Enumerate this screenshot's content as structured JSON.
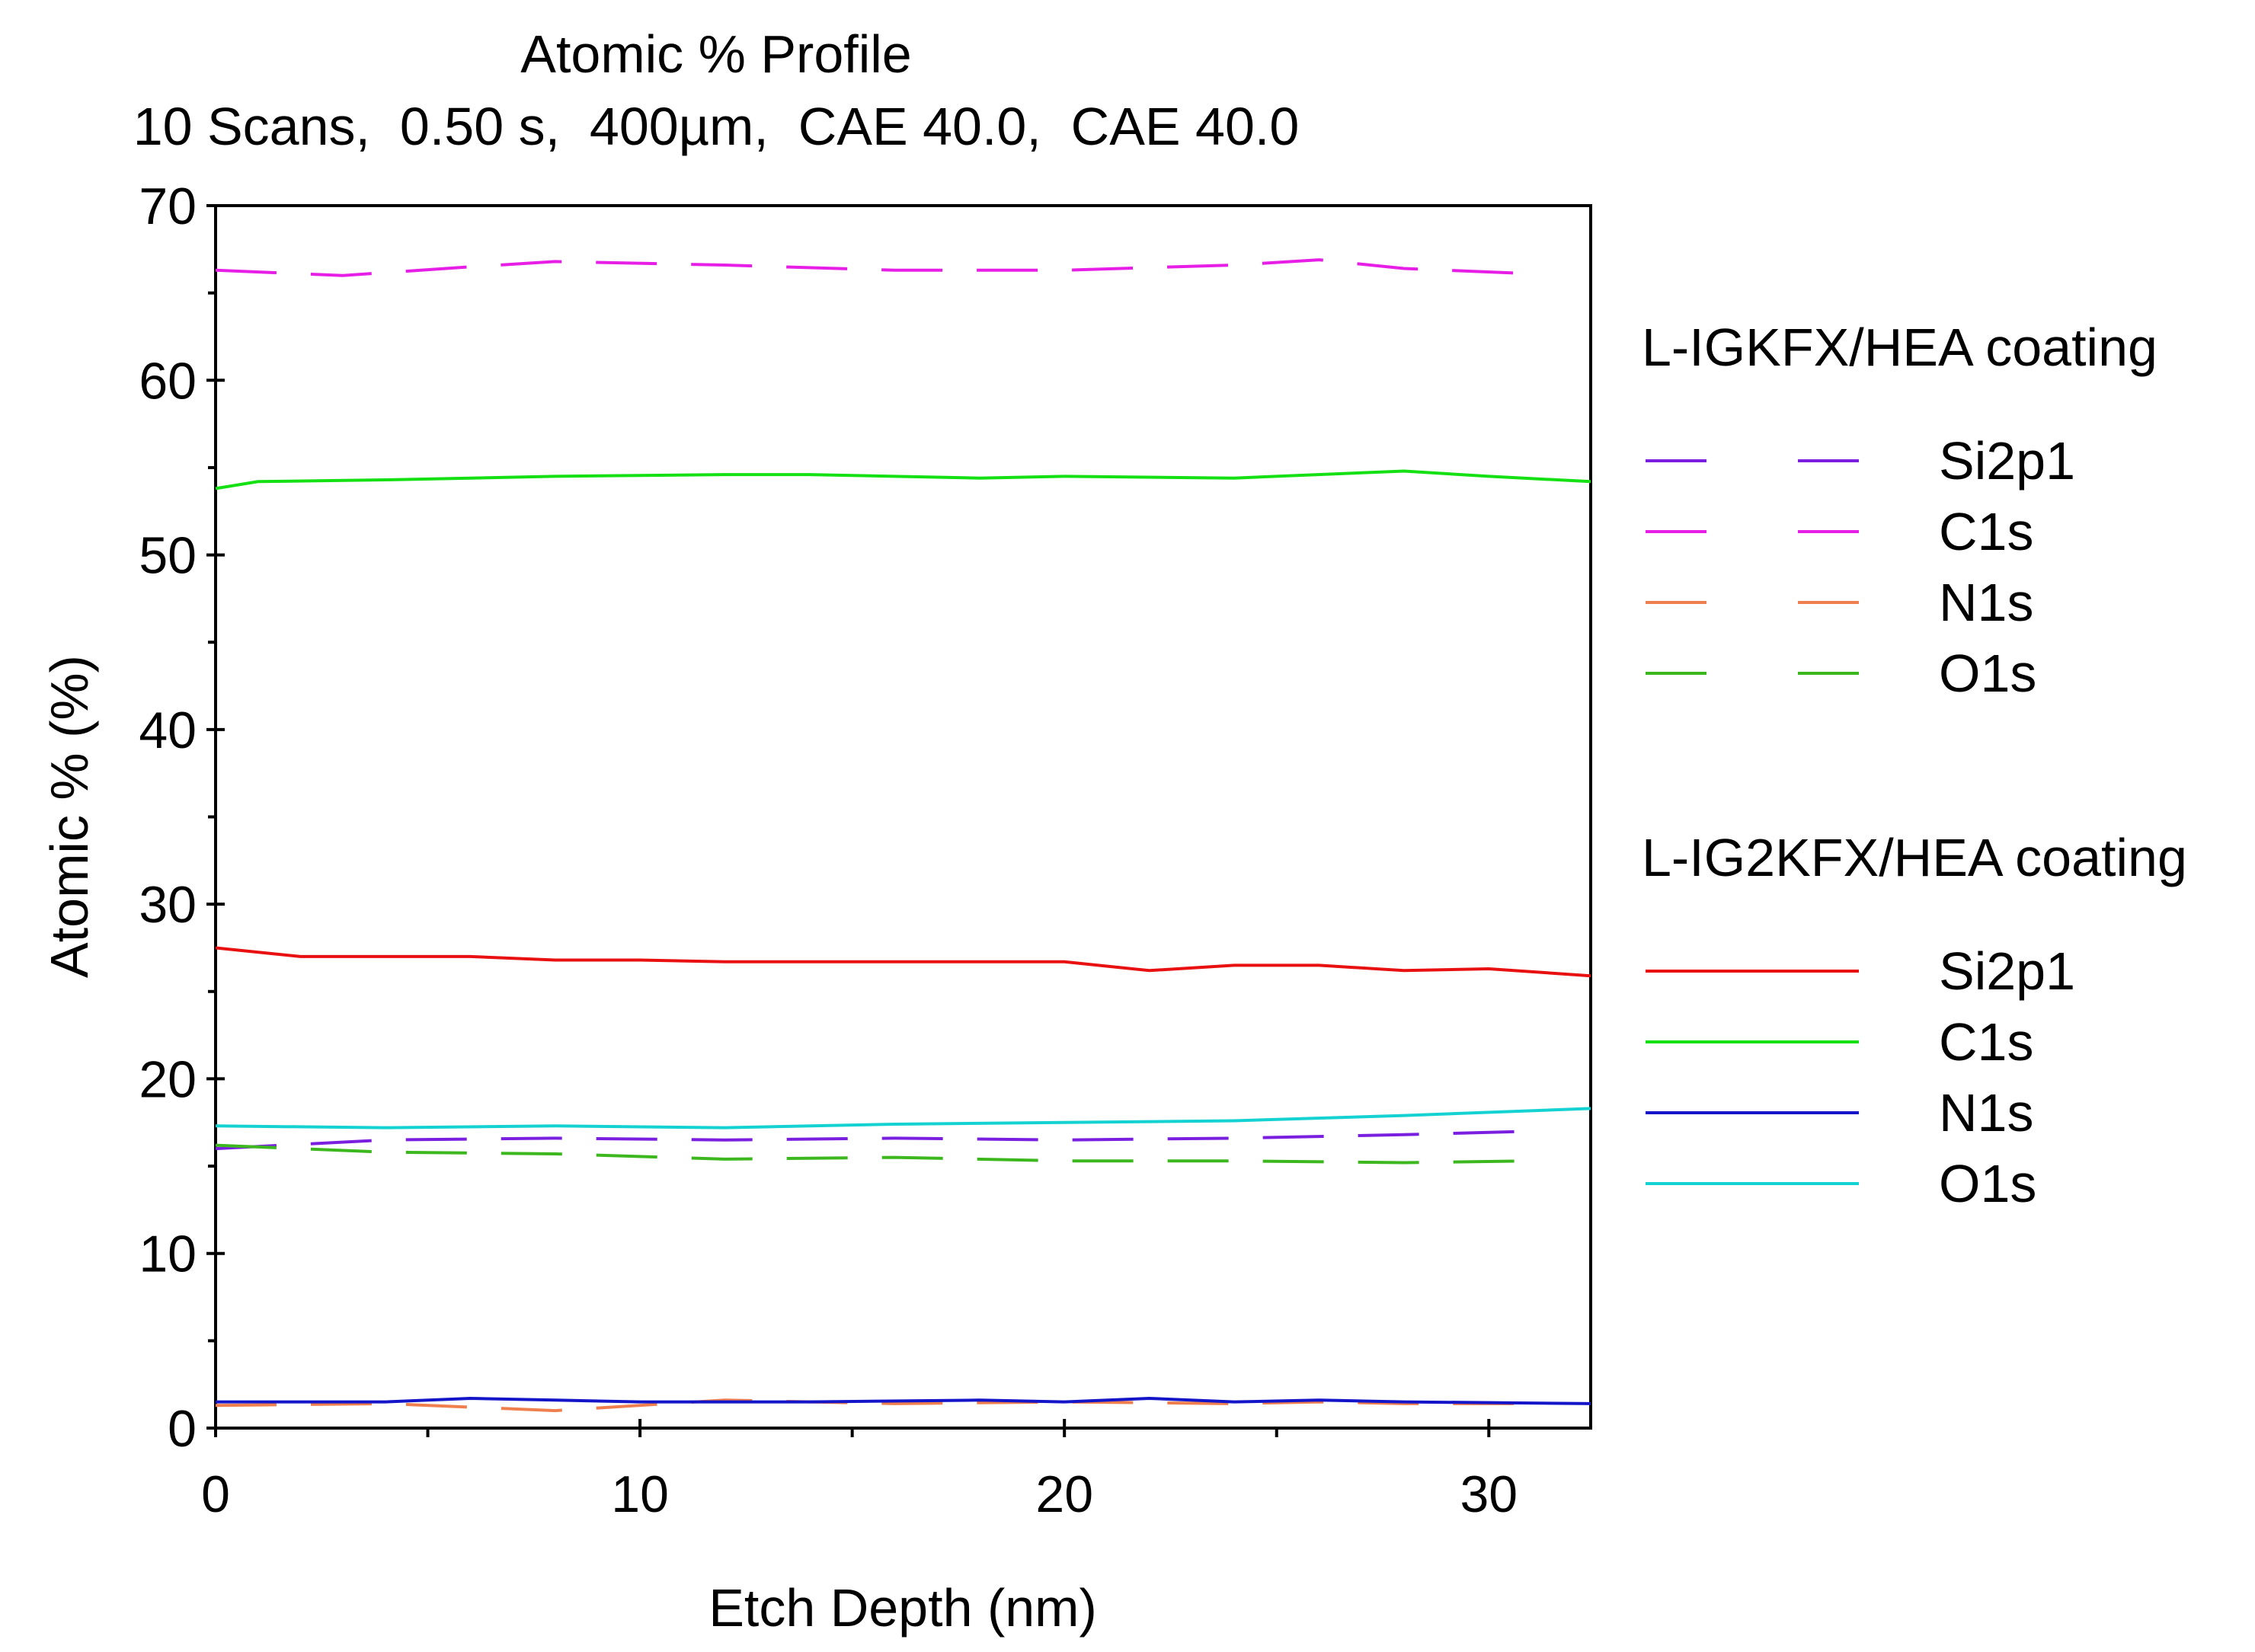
{
  "chart_data": {
    "type": "line",
    "title": "Atomic % Profile",
    "subtitle": "10 Scans,  0.50 s,  400µm,  CAE 40.0,  CAE 40.0",
    "xlabel": "Etch Depth (nm)",
    "ylabel": "Atomic % (%)",
    "xlim": [
      0,
      32.4
    ],
    "ylim": [
      0,
      70
    ],
    "xticks": [
      0,
      10,
      20,
      30
    ],
    "yticks": [
      0,
      10,
      20,
      30,
      40,
      50,
      60,
      70
    ],
    "grid": false,
    "legend_position": "right",
    "groups": [
      {
        "title": "L-IGKFX/HEA coating",
        "style": "dashed",
        "series": [
          {
            "name": "Si2p1",
            "color": "#7a1fe0",
            "x": [
              0,
              4,
              8,
              12,
              16,
              20,
              24,
              28,
              31
            ],
            "y": [
              16.0,
              16.5,
              16.6,
              16.5,
              16.6,
              16.5,
              16.6,
              16.8,
              17.0
            ]
          },
          {
            "name": "C1s",
            "color": "#e61ee6",
            "x": [
              0,
              3,
              6,
              8,
              12,
              16,
              20,
              24,
              26,
              28,
              31
            ],
            "y": [
              66.3,
              66.0,
              66.5,
              66.8,
              66.6,
              66.3,
              66.3,
              66.6,
              66.9,
              66.4,
              66.1
            ]
          },
          {
            "name": "N1s",
            "color": "#f07f4f",
            "x": [
              0,
              4,
              8,
              12,
              16,
              20,
              24,
              26,
              28,
              31
            ],
            "y": [
              1.3,
              1.4,
              1.0,
              1.6,
              1.4,
              1.5,
              1.4,
              1.5,
              1.4,
              1.4
            ]
          },
          {
            "name": "O1s",
            "color": "#3cb81e",
            "x": [
              0,
              4,
              8,
              12,
              16,
              20,
              24,
              28,
              31
            ],
            "y": [
              16.2,
              15.8,
              15.7,
              15.4,
              15.5,
              15.3,
              15.3,
              15.2,
              15.3
            ]
          }
        ]
      },
      {
        "title": "L-IG2KFX/HEA coating",
        "style": "solid",
        "series": [
          {
            "name": "Si2p1",
            "color": "#e81010",
            "x": [
              0,
              2,
              4,
              6,
              8,
              10,
              12,
              16,
              20,
              22,
              24,
              26,
              28,
              30,
              32.4
            ],
            "y": [
              27.5,
              27.0,
              27.0,
              27.0,
              26.8,
              26.8,
              26.7,
              26.7,
              26.7,
              26.2,
              26.5,
              26.5,
              26.2,
              26.3,
              25.9
            ]
          },
          {
            "name": "C1s",
            "color": "#14e014",
            "x": [
              0,
              1,
              4,
              8,
              12,
              14,
              18,
              20,
              24,
              28,
              30,
              32.4
            ],
            "y": [
              53.8,
              54.2,
              54.3,
              54.5,
              54.6,
              54.6,
              54.4,
              54.5,
              54.4,
              54.8,
              54.5,
              54.2
            ]
          },
          {
            "name": "N1s",
            "color": "#1414c8",
            "x": [
              0,
              4,
              6,
              8,
              10,
              14,
              18,
              20,
              22,
              24,
              26,
              28,
              32.4
            ],
            "y": [
              1.5,
              1.5,
              1.7,
              1.6,
              1.5,
              1.5,
              1.6,
              1.5,
              1.7,
              1.5,
              1.6,
              1.5,
              1.4
            ]
          },
          {
            "name": "O1s",
            "color": "#14d2d2",
            "x": [
              0,
              4,
              8,
              12,
              16,
              20,
              24,
              28,
              32.4
            ],
            "y": [
              17.3,
              17.2,
              17.3,
              17.2,
              17.4,
              17.5,
              17.6,
              17.9,
              18.3
            ]
          }
        ]
      }
    ]
  }
}
